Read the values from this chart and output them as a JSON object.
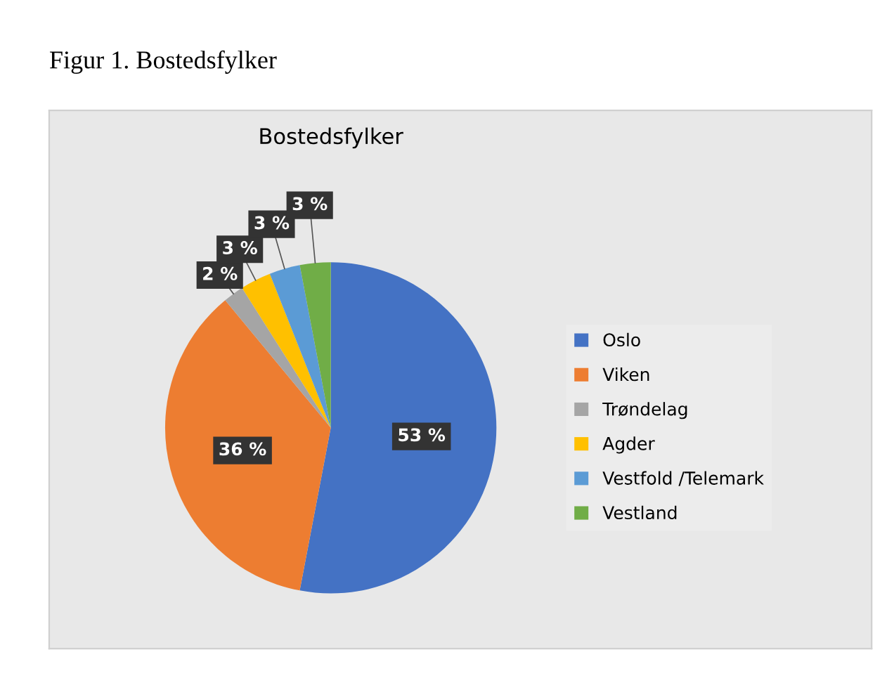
{
  "chart_data": {
    "type": "pie",
    "title": "Figur 1. Bostedsfylker",
    "subtitle": "Bostedsfylker",
    "categories": [
      "Oslo",
      "Viken",
      "Trøndelag",
      "Agder",
      "Vestfold /Telemark",
      "Vestland"
    ],
    "values": [
      53,
      36,
      2,
      3,
      3,
      3
    ],
    "colors": [
      "#4472c4",
      "#ed7d31",
      "#a5a5a5",
      "#ffc000",
      "#5b9bd5",
      "#70ad47"
    ],
    "value_labels": [
      "53 %",
      "36 %",
      "2 %",
      "3 %",
      "3 %",
      "3 %"
    ],
    "legend": "right"
  }
}
